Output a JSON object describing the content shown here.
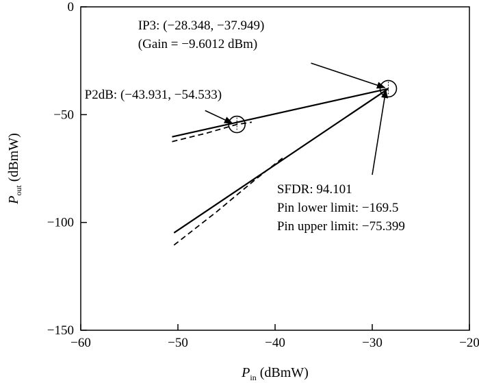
{
  "chart_data": {
    "type": "line",
    "title": "",
    "xlabel": {
      "main": "P",
      "sub": "in",
      "unit": "(dBmW)"
    },
    "ylabel": {
      "main": "P",
      "sub": "out",
      "unit": "(dBmW)"
    },
    "xlim": [
      -60,
      -20
    ],
    "ylim": [
      -150,
      0
    ],
    "xticks": [
      -60,
      -50,
      -40,
      -30,
      -20
    ],
    "xtick_labels": [
      "−60",
      "−50",
      "−40",
      "−30",
      "−20"
    ],
    "yticks": [
      -150,
      -100,
      -50,
      0
    ],
    "ytick_labels": [
      "−150",
      "−100",
      "−50",
      "0"
    ],
    "grid": false,
    "series": [
      {
        "style": "solid",
        "points": [
          [
            -50.6,
            -60.3
          ],
          [
            -28.348,
            -37.949
          ]
        ]
      },
      {
        "style": "dashed",
        "points": [
          [
            -50.6,
            -62.5
          ],
          [
            -47.0,
            -58.5
          ],
          [
            -43.931,
            -54.533
          ],
          [
            -42.4,
            -53.5
          ]
        ]
      },
      {
        "style": "solid",
        "points": [
          [
            -50.4,
            -104.8
          ],
          [
            -28.348,
            -37.949
          ]
        ]
      },
      {
        "style": "dashed",
        "points": [
          [
            -50.4,
            -110.5
          ],
          [
            -46.0,
            -95.0
          ],
          [
            -42.0,
            -80.0
          ],
          [
            -39.2,
            -70.0
          ]
        ]
      }
    ],
    "markers": [
      {
        "name": "ip3-circle",
        "x": -28.348,
        "y": -37.949
      },
      {
        "name": "p2db-circle",
        "x": -43.931,
        "y": -54.533
      }
    ],
    "annotations": {
      "ip3": {
        "lines": [
          "IP3: (−28.348, −37.949)",
          "(Gain = −9.6012 dBm)"
        ],
        "x": -54.1,
        "y": -10.5,
        "arrow_from": [
          -36.3,
          -26.1
        ],
        "arrow_to": [
          -28.7,
          -37.5
        ]
      },
      "p2db": {
        "lines": [
          "P2dB: (−43.931, −54.533)"
        ],
        "x": -59.6,
        "y": -42.6,
        "arrow_from": [
          -47.2,
          -48.1
        ],
        "arrow_to": [
          -44.4,
          -54.0
        ]
      },
      "sfdr": {
        "lines": [
          "SFDR: 94.101",
          "Pin lower limit: −169.5",
          "Pin upper limit: −75.399"
        ],
        "x": -39.8,
        "y": -86.5,
        "arrow_from": [
          -30.0,
          -77.9
        ],
        "arrow_to": [
          -28.6,
          -38.6
        ]
      }
    }
  }
}
